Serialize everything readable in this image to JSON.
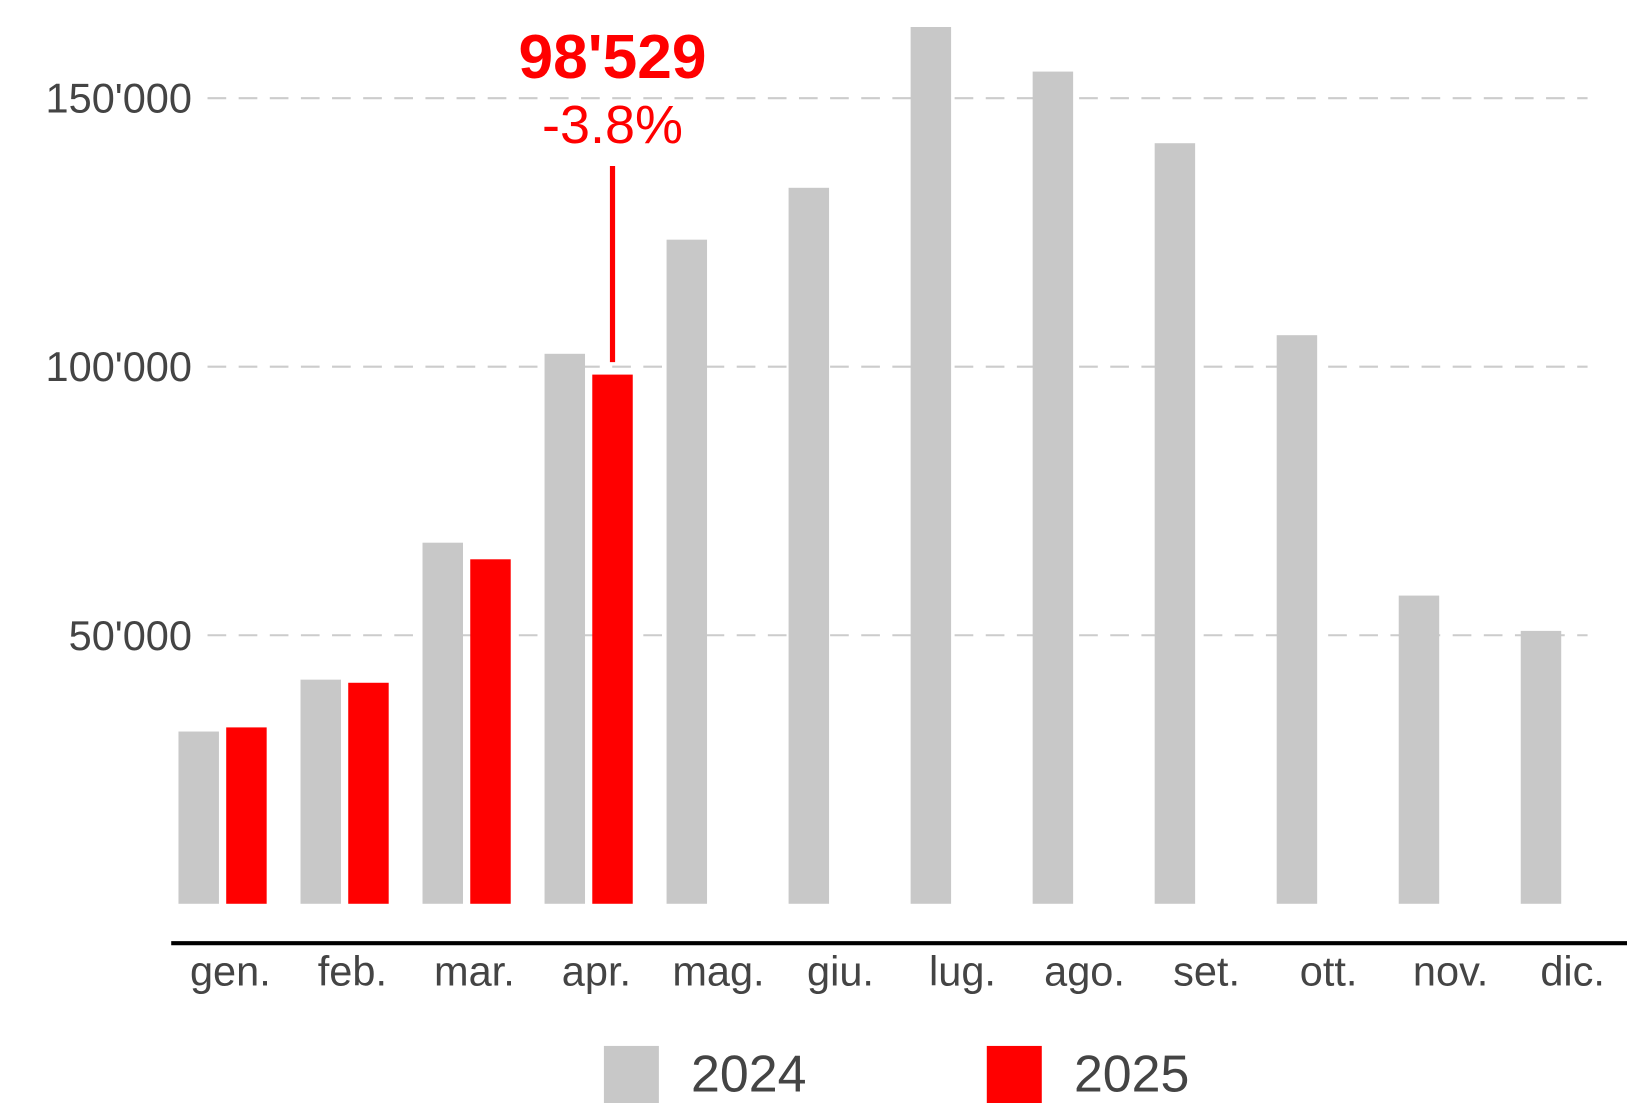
{
  "chart_data": {
    "type": "bar",
    "categories": [
      "gen.",
      "feb.",
      "mar.",
      "apr.",
      "mag.",
      "giu.",
      "lug.",
      "ago.",
      "set.",
      "ott.",
      "nov.",
      "dic."
    ],
    "series": [
      {
        "name": "2024",
        "color": "#c8c8c8",
        "values": [
          32070,
          41730,
          67230,
          102400,
          123650,
          133310,
          163250,
          154950,
          141610,
          105870,
          57380,
          50810
        ]
      },
      {
        "name": "2025",
        "color": "#ff0000",
        "values": [
          32840,
          41150,
          64140,
          98529,
          null,
          null,
          null,
          null,
          null,
          null,
          null,
          null
        ],
        "value_labels": [
          null,
          null,
          null,
          "98'529",
          null,
          null,
          null,
          null,
          null,
          null,
          null,
          null
        ]
      }
    ],
    "annotations": [
      {
        "category": 3,
        "text": "-3.8%"
      }
    ],
    "ylim": [
      0,
      168000
    ],
    "yticks": [
      {
        "value": 50000,
        "label": "50'000"
      },
      {
        "value": 100000,
        "label": "100'000"
      },
      {
        "value": 150000,
        "label": "150'000"
      }
    ],
    "grid": true,
    "legend": "bottom"
  }
}
